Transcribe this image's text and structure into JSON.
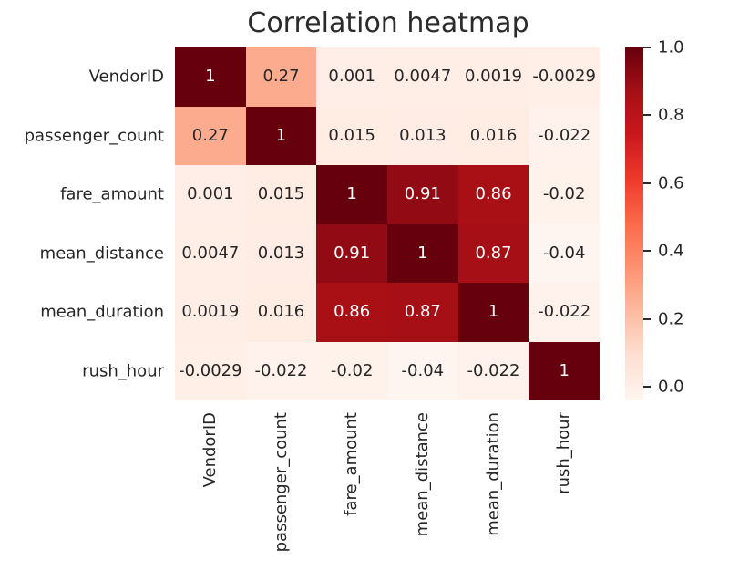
{
  "title": "Correlation heatmap",
  "chart_data": {
    "type": "heatmap",
    "title": "Correlation heatmap",
    "x_categories": [
      "VendorID",
      "passenger_count",
      "fare_amount",
      "mean_distance",
      "mean_duration",
      "rush_hour"
    ],
    "y_categories": [
      "VendorID",
      "passenger_count",
      "fare_amount",
      "mean_distance",
      "mean_duration",
      "rush_hour"
    ],
    "matrix": [
      [
        1,
        0.27,
        0.001,
        0.0047,
        0.0019,
        -0.0029
      ],
      [
        0.27,
        1,
        0.015,
        0.013,
        0.016,
        -0.022
      ],
      [
        0.001,
        0.015,
        1,
        0.91,
        0.86,
        -0.02
      ],
      [
        0.0047,
        0.013,
        0.91,
        1,
        0.87,
        -0.04
      ],
      [
        0.0019,
        0.016,
        0.86,
        0.87,
        1,
        -0.022
      ],
      [
        -0.0029,
        -0.022,
        -0.02,
        -0.04,
        -0.022,
        1
      ]
    ],
    "cell_labels": [
      [
        "1",
        "0.27",
        "0.001",
        "0.0047",
        "0.0019",
        "-0.0029"
      ],
      [
        "0.27",
        "1",
        "0.015",
        "0.013",
        "0.016",
        "-0.022"
      ],
      [
        "0.001",
        "0.015",
        "1",
        "0.91",
        "0.86",
        "-0.02"
      ],
      [
        "0.0047",
        "0.013",
        "0.91",
        "1",
        "0.87",
        "-0.04"
      ],
      [
        "0.0019",
        "0.016",
        "0.86",
        "0.87",
        "1",
        "-0.022"
      ],
      [
        "-0.0029",
        "-0.022",
        "-0.02",
        "-0.04",
        "-0.022",
        "1"
      ]
    ],
    "vmin": -0.04,
    "vmax": 1.0,
    "colormap": {
      "name": "Reds",
      "anchors": [
        "#fff5f0",
        "#fee0d2",
        "#fcbba1",
        "#fc9272",
        "#fb6a4a",
        "#ef3b2c",
        "#cb181d",
        "#a50f15",
        "#67000d"
      ]
    },
    "colorbar": {
      "position": "right",
      "tick_labels": [
        "1.0",
        "0.8",
        "0.6",
        "0.4",
        "0.2",
        "0.0"
      ],
      "tick_values": [
        1.0,
        0.8,
        0.6,
        0.4,
        0.2,
        0.0
      ]
    },
    "annotation_colors": {
      "dark": "#262626",
      "light": "#ffffff"
    },
    "grid": false,
    "legend": "colorbar"
  }
}
